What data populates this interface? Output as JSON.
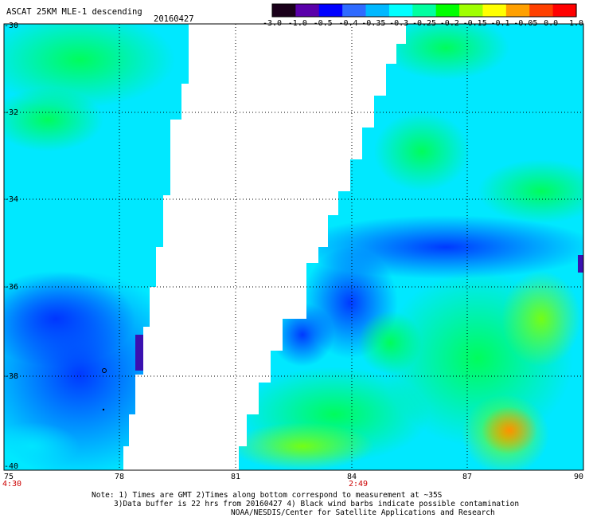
{
  "header": {
    "title": "ASCAT 25KM MLE-1 descending",
    "date": "20160427"
  },
  "colorbar": {
    "labels": [
      "-3.0",
      "-1.0",
      "-0.5",
      "-0.4",
      "-0.35",
      "-0.3",
      "-0.25",
      "-0.2",
      "-0.15",
      "-0.1",
      "-0.05",
      "0.0",
      "1.0"
    ],
    "colors": [
      "#1a001a",
      "#5a00aa",
      "#0000ff",
      "#2f6bff",
      "#00b8ff",
      "#00ffff",
      "#00ffa0",
      "#00ff00",
      "#a0ff00",
      "#ffff00",
      "#ffa000",
      "#ff4000",
      "#ff0000"
    ]
  },
  "axes": {
    "lon_labels": [
      "75",
      "78",
      "81",
      "84",
      "87",
      "90"
    ],
    "lat_labels": [
      "-30",
      "-32",
      "-34",
      "-36",
      "-38",
      "-40"
    ]
  },
  "time_labels": {
    "left": "4:30",
    "center": "2:49"
  },
  "notes": {
    "line1": "Note: 1) Times are GMT 2)Times along bottom correspond to measurement at ~35S",
    "line2": "3)Data buffer is 22 hrs from 20160427 4) Black wind barbs indicate possible contamination",
    "line3": "NOAA/NESDIS/Center for Satellite Applications and Research"
  }
}
